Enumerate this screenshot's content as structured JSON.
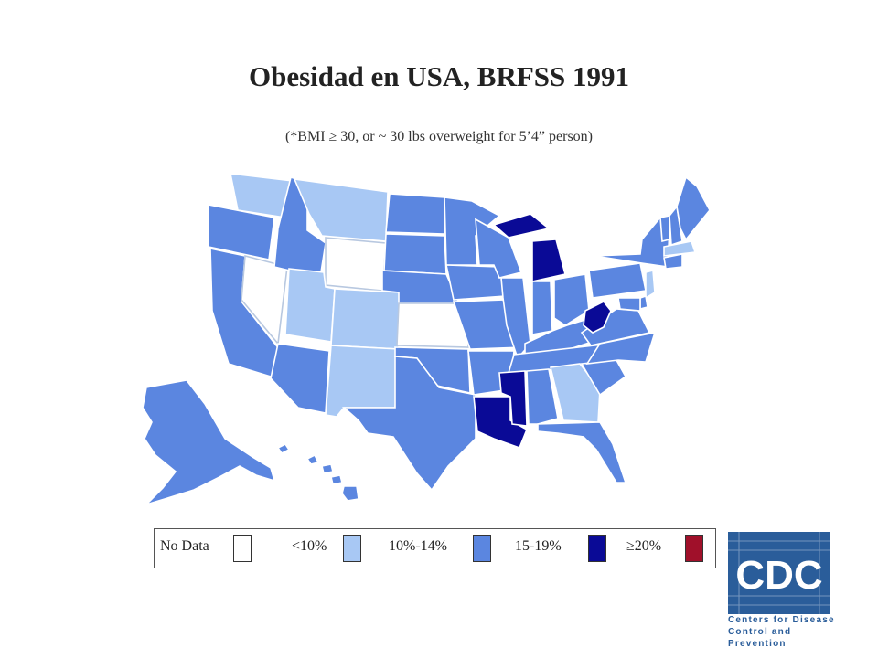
{
  "title": "Obesidad en USA, BRFSS 1991",
  "subtitle": "(*BMI ≥ 30, or ~ 30 lbs overweight for 5’4” person)",
  "colors": {
    "no_data": "#ffffff",
    "lt10": "#a8c8f4",
    "p10_14": "#5b86e0",
    "p15_19": "#0a0a96",
    "ge20": "#a0102a",
    "border": "#ffffff"
  },
  "legend": [
    {
      "label": "No Data",
      "color_key": "no_data"
    },
    {
      "label": "<10%",
      "color_key": "lt10"
    },
    {
      "label": "10%-14%",
      "color_key": "p10_14"
    },
    {
      "label": "15-19%",
      "color_key": "p15_19"
    },
    {
      "label": "≥20%",
      "color_key": "ge20"
    }
  ],
  "states": {
    "no_data": [
      "NV",
      "WY",
      "KS"
    ],
    "lt10": [
      "WA",
      "MT",
      "UT",
      "CO",
      "NM",
      "GA",
      "MA",
      "NJ"
    ],
    "p10_14": [
      "OR",
      "CA",
      "ID",
      "AZ",
      "ND",
      "SD",
      "NE",
      "OK",
      "TX",
      "MN",
      "IA",
      "MO",
      "AR",
      "WI",
      "IL",
      "IN",
      "OH",
      "KY",
      "TN",
      "AL",
      "FL",
      "SC",
      "NC",
      "VA",
      "PA",
      "NY",
      "VT",
      "NH",
      "ME",
      "CT",
      "MD",
      "DE",
      "AK",
      "HI"
    ],
    "p15_19": [
      "MI",
      "WV",
      "MS",
      "LA"
    ],
    "ge20": []
  },
  "logo": {
    "acronym": "CDC",
    "line1": "Centers for Disease",
    "line2": "Control and Prevention"
  }
}
